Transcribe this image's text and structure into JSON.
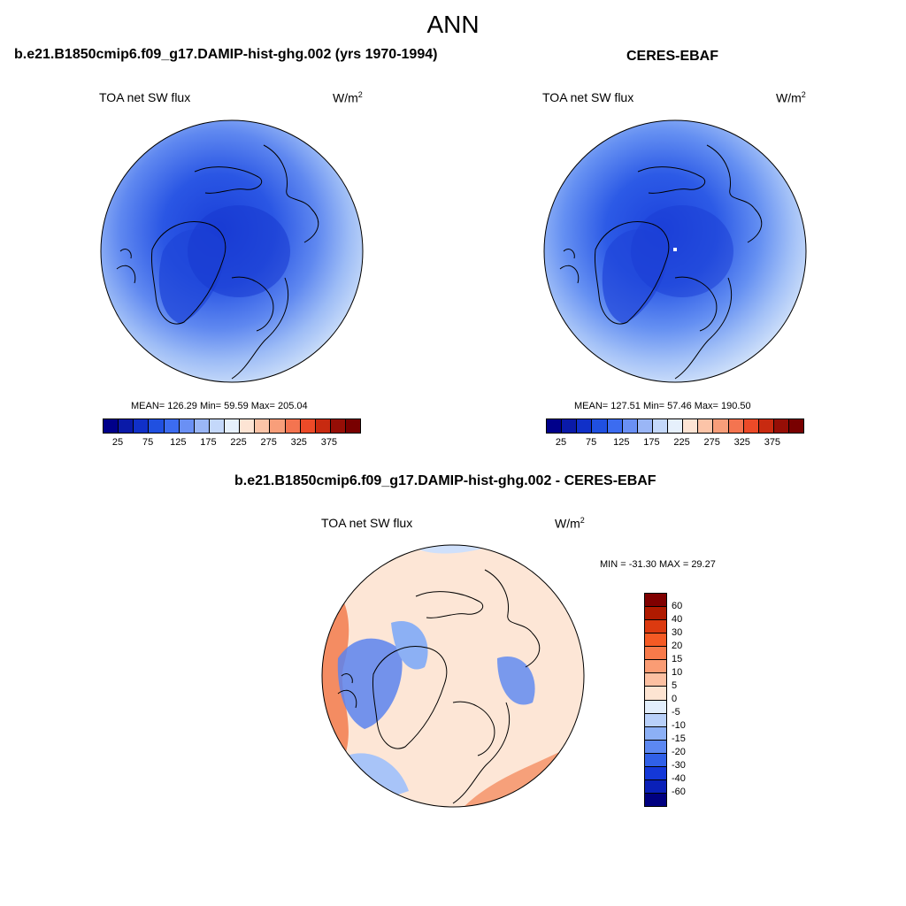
{
  "page": {
    "title": "ANN"
  },
  "panel_model": {
    "title": "b.e21.B1850cmip6.f09_g17.DAMIP-hist-ghg.002 (yrs 1970-1994)",
    "variable": "TOA net SW flux",
    "units_base": "W/m",
    "units_exp": "2",
    "stats": "MEAN= 126.29  Min=  59.59  Max= 205.04"
  },
  "panel_obs": {
    "title": "CERES-EBAF",
    "variable": "TOA net SW flux",
    "units_base": "W/m",
    "units_exp": "2",
    "stats": "MEAN= 127.51  Min=  57.46  Max= 190.50"
  },
  "panel_diff": {
    "title": "b.e21.B1850cmip6.f09_g17.DAMIP-hist-ghg.002 - CERES-EBAF",
    "variable": "TOA net SW flux",
    "units_base": "W/m",
    "units_exp": "2",
    "stats": "MIN = -31.30 MAX =  29.27"
  },
  "colorbar_abs": {
    "labels": [
      "25",
      "75",
      "125",
      "175",
      "225",
      "275",
      "325",
      "375"
    ],
    "colors": [
      "#00008a",
      "#0a1aa8",
      "#1030c8",
      "#2050e0",
      "#3c6cf0",
      "#6a90f4",
      "#9ab6f6",
      "#c4d8fa",
      "#e6f0fc",
      "#fde4d4",
      "#fcc4a8",
      "#f89e7a",
      "#f47450",
      "#ec4a28",
      "#c82a10",
      "#960e06",
      "#780000"
    ]
  },
  "colorbar_diff": {
    "labels": [
      "60",
      "40",
      "30",
      "20",
      "15",
      "10",
      "5",
      "0",
      "-5",
      "-10",
      "-15",
      "-20",
      "-30",
      "-40",
      "-60"
    ],
    "colors": [
      "#800000",
      "#b01a00",
      "#dc3a10",
      "#f55a24",
      "#f87a4a",
      "#fa9c74",
      "#fcc0a2",
      "#fde4d2",
      "#e2eefc",
      "#b8d0fa",
      "#8cb0f6",
      "#5c88f2",
      "#3060e8",
      "#1438d8",
      "#0a20b8",
      "#000080"
    ]
  },
  "chart_data": [
    {
      "type": "heatmap",
      "title": "b.e21.B1850cmip6.f09_g17.DAMIP-hist-ghg.002 (yrs 1970-1994)",
      "variable": "TOA net SW flux",
      "units": "W/m2",
      "projection": "polar stereographic, north pole",
      "mean": 126.29,
      "min": 59.59,
      "max": 205.04,
      "colorbar_levels": [
        25,
        50,
        75,
        100,
        125,
        150,
        175,
        200,
        225,
        250,
        275,
        300,
        325,
        350,
        375
      ]
    },
    {
      "type": "heatmap",
      "title": "CERES-EBAF",
      "variable": "TOA net SW flux",
      "units": "W/m2",
      "projection": "polar stereographic, north pole",
      "mean": 127.51,
      "min": 57.46,
      "max": 190.5,
      "colorbar_levels": [
        25,
        50,
        75,
        100,
        125,
        150,
        175,
        200,
        225,
        250,
        275,
        300,
        325,
        350,
        375
      ]
    },
    {
      "type": "heatmap",
      "title": "b.e21.B1850cmip6.f09_g17.DAMIP-hist-ghg.002 - CERES-EBAF",
      "variable": "TOA net SW flux",
      "units": "W/m2",
      "projection": "polar stereographic, north pole",
      "min": -31.3,
      "max": 29.27,
      "colorbar_levels": [
        60,
        40,
        30,
        20,
        15,
        10,
        5,
        0,
        -5,
        -10,
        -15,
        -20,
        -30,
        -40,
        -60
      ]
    }
  ]
}
